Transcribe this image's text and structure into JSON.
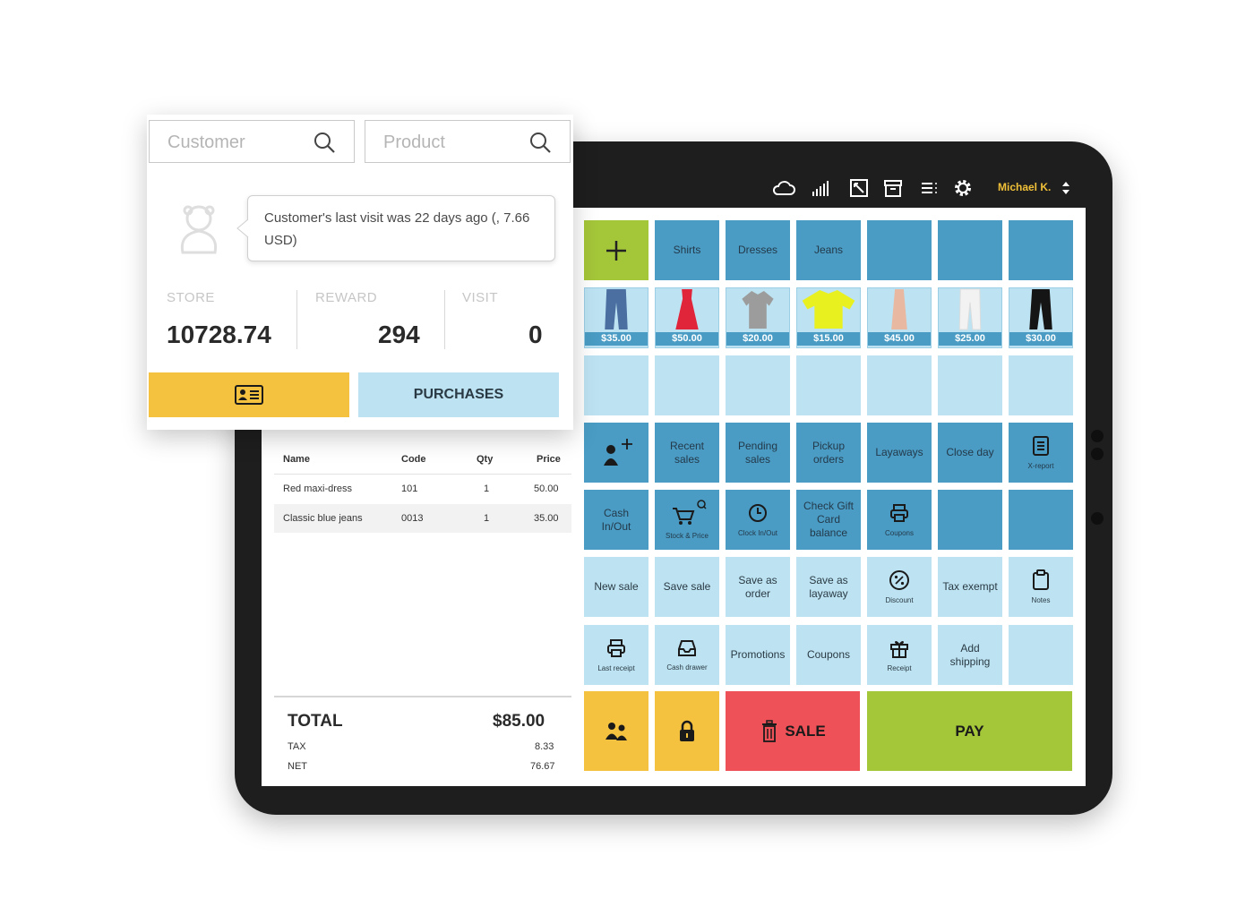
{
  "popup": {
    "customer_placeholder": "Customer",
    "product_placeholder": "Product",
    "visit_message": "Customer's last visit was 22 days ago (, 7.66 USD)",
    "stats": [
      {
        "label": "STORE",
        "value": "10728.74"
      },
      {
        "label": "REWARD",
        "value": "294"
      },
      {
        "label": "VISIT",
        "value": "0"
      }
    ],
    "purchases_label": "PURCHASES"
  },
  "topbar": {
    "user": "Michael K.",
    "icons": [
      "cloud-icon",
      "signal-icon",
      "expand-icon",
      "archive-icon",
      "menu-icon",
      "gear-icon"
    ]
  },
  "categories": [
    "Shirts",
    "Dresses",
    "Jeans"
  ],
  "products": [
    {
      "price": "$35.00",
      "color": "#4a6fa0"
    },
    {
      "price": "$50.00",
      "color": "#e0243a"
    },
    {
      "price": "$20.00",
      "color": "#9c9c9c"
    },
    {
      "price": "$15.00",
      "color": "#e8f020"
    },
    {
      "price": "$45.00",
      "color": "#e8b8a0"
    },
    {
      "price": "$25.00",
      "color": "#f2f2f2"
    },
    {
      "price": "$30.00",
      "color": "#151515"
    }
  ],
  "actions": {
    "recent_sales": "Recent sales",
    "pending_sales": "Pending sales",
    "pickup_orders": "Pickup orders",
    "layaways": "Layaways",
    "close_day": "Close day",
    "x_report": "X-report",
    "cash_in_out": "Cash In/Out",
    "stock_price": "Stock & Price",
    "clock_in_out": "Clock In/Out",
    "check_gift_card": "Check Gift Card balance",
    "coupons_small": "Coupons",
    "new_sale": "New sale",
    "save_sale": "Save sale",
    "save_as_order": "Save as order",
    "save_as_layaway": "Save as layaway",
    "discount": "Discount",
    "tax_exempt": "Tax exempt",
    "notes": "Notes",
    "last_receipt": "Last receipt",
    "cash_drawer": "Cash drawer",
    "promotions": "Promotions",
    "coupons": "Coupons",
    "receipt": "Receipt",
    "add_shipping": "Add shipping",
    "sale": "SALE",
    "pay": "PAY"
  },
  "receipt": {
    "headers": {
      "name": "Name",
      "code": "Code",
      "qty": "Qty",
      "price": "Price"
    },
    "items": [
      {
        "name": "Red maxi-dress",
        "code": "101",
        "qty": "1",
        "price": "50.00"
      },
      {
        "name": "Classic blue jeans",
        "code": "0013",
        "qty": "1",
        "price": "35.00"
      }
    ],
    "total_label": "TOTAL",
    "total_value": "$85.00",
    "tax_label": "TAX",
    "tax_value": "8.33",
    "net_label": "NET",
    "net_value": "76.67"
  },
  "colors": {
    "tile_dark": "#4a9cc4",
    "tile_light": "#bde3f2",
    "green": "#a4c639",
    "yellow": "#f4c23e",
    "red": "#ee5158",
    "user_name": "#f0c038"
  }
}
